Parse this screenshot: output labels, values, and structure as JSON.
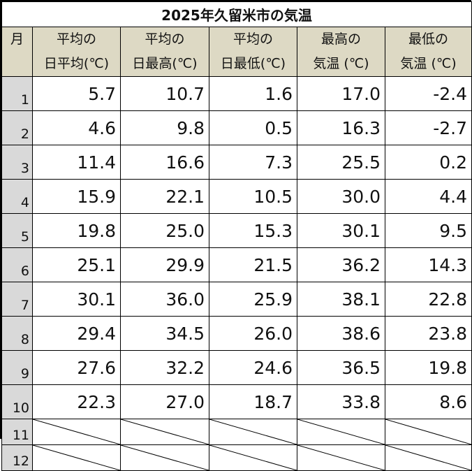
{
  "title": "2025年久留米市の気温",
  "headers": {
    "month": "月",
    "columns": [
      {
        "line1": "平均の",
        "line2": "日平均(℃)"
      },
      {
        "line1": "平均の",
        "line2": "日最高(℃)"
      },
      {
        "line1": "平均の",
        "line2": "日最低(℃)"
      },
      {
        "line1": "最高の",
        "line2": "気温 (℃)"
      },
      {
        "line1": "最低の",
        "line2": "気温 (℃)"
      }
    ]
  },
  "rows": [
    {
      "month": "1",
      "values": [
        "5.7",
        "10.7",
        "1.6",
        "17.0",
        "-2.4"
      ]
    },
    {
      "month": "2",
      "values": [
        "4.6",
        "9.8",
        "0.5",
        "16.3",
        "-2.7"
      ]
    },
    {
      "month": "3",
      "values": [
        "11.4",
        "16.6",
        "7.3",
        "25.5",
        "0.2"
      ]
    },
    {
      "month": "4",
      "values": [
        "15.9",
        "22.1",
        "10.5",
        "30.0",
        "4.4"
      ]
    },
    {
      "month": "5",
      "values": [
        "19.8",
        "25.0",
        "15.3",
        "30.1",
        "9.5"
      ]
    },
    {
      "month": "6",
      "values": [
        "25.1",
        "29.9",
        "21.5",
        "36.2",
        "14.3"
      ]
    },
    {
      "month": "7",
      "values": [
        "30.1",
        "36.0",
        "25.9",
        "38.1",
        "22.8"
      ]
    },
    {
      "month": "8",
      "values": [
        "29.4",
        "34.5",
        "26.0",
        "38.6",
        "23.8"
      ]
    },
    {
      "month": "9",
      "values": [
        "27.6",
        "32.2",
        "24.6",
        "36.5",
        "19.8"
      ]
    },
    {
      "month": "10",
      "values": [
        "22.3",
        "27.0",
        "18.7",
        "33.8",
        "8.6"
      ]
    }
  ],
  "empty_rows": [
    {
      "month": "11"
    },
    {
      "month": "12"
    }
  ],
  "colors": {
    "header_bg": "#ddd9c4",
    "month_bg": "#d9d9d9",
    "border": "#000000"
  }
}
